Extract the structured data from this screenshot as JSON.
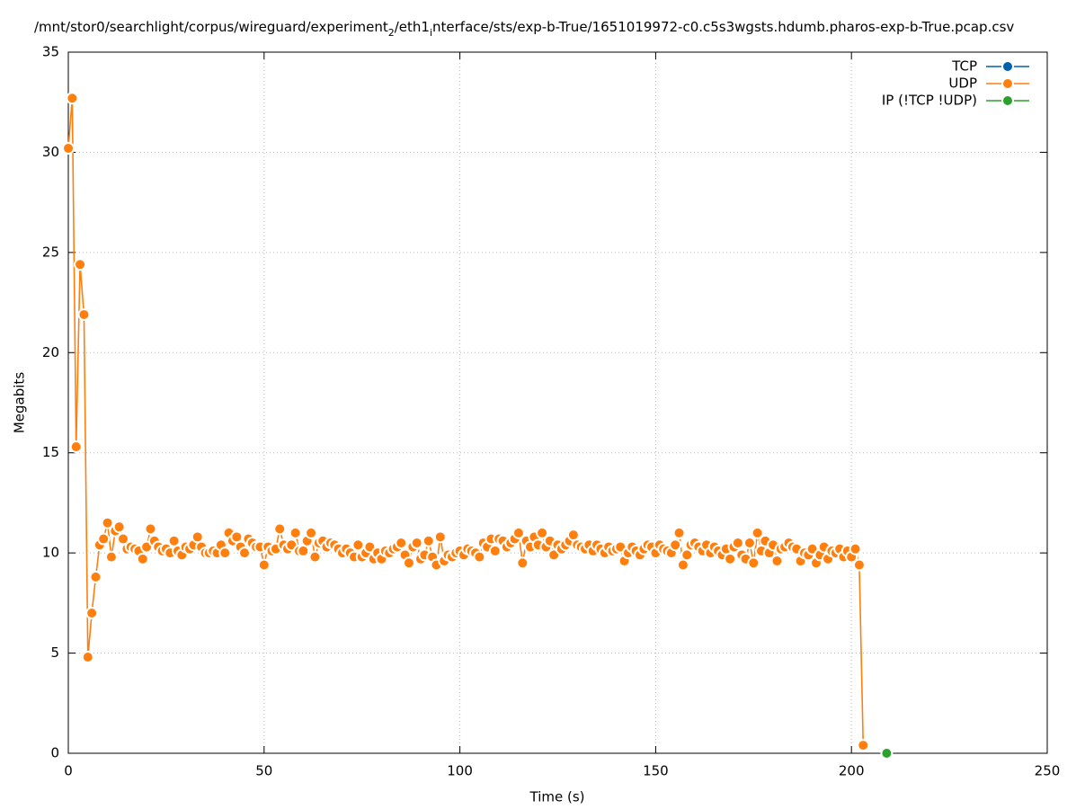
{
  "chart_data": {
    "type": "line",
    "title": [
      "/mnt/stor0/searchlight/corpus/wireguard/experiment",
      "2",
      "/eth1",
      "i",
      "nterface/sts/exp-b-True/1651019972-c0.c5s3wgsts.hdumb.pharos-exp-b-True.pcap.csv"
    ],
    "xlabel": "Time (s)",
    "ylabel": "Megabits",
    "xlim": [
      0,
      250
    ],
    "xticks": [
      0,
      50,
      100,
      150,
      200,
      250
    ],
    "ylim": [
      0,
      35
    ],
    "yticks": [
      0,
      5,
      10,
      15,
      20,
      25,
      30,
      35
    ],
    "grid": true,
    "legend": "top-right",
    "series": [
      {
        "name": "TCP",
        "color": "#0060ad",
        "x": [],
        "values": []
      },
      {
        "name": "UDP",
        "color": "#ff7f0e",
        "x": [
          0,
          1,
          2,
          3,
          4,
          5,
          6,
          7,
          8,
          9,
          10,
          11,
          12,
          13,
          14,
          15,
          16,
          17,
          18,
          19,
          20,
          21,
          22,
          23,
          24,
          25,
          26,
          27,
          28,
          29,
          30,
          31,
          32,
          33,
          34,
          35,
          36,
          37,
          38,
          39,
          40,
          41,
          42,
          43,
          44,
          45,
          46,
          47,
          48,
          49,
          50,
          51,
          52,
          53,
          54,
          55,
          56,
          57,
          58,
          59,
          60,
          61,
          62,
          63,
          64,
          65,
          66,
          67,
          68,
          69,
          70,
          71,
          72,
          73,
          74,
          75,
          76,
          77,
          78,
          79,
          80,
          81,
          82,
          83,
          84,
          85,
          86,
          87,
          88,
          89,
          90,
          91,
          92,
          93,
          94,
          95,
          96,
          97,
          98,
          99,
          100,
          101,
          102,
          103,
          104,
          105,
          106,
          107,
          108,
          109,
          110,
          111,
          112,
          113,
          114,
          115,
          116,
          117,
          118,
          119,
          120,
          121,
          122,
          123,
          124,
          125,
          126,
          127,
          128,
          129,
          130,
          131,
          132,
          133,
          134,
          135,
          136,
          137,
          138,
          139,
          140,
          141,
          142,
          143,
          144,
          145,
          146,
          147,
          148,
          149,
          150,
          151,
          152,
          153,
          154,
          155,
          156,
          157,
          158,
          159,
          160,
          161,
          162,
          163,
          164,
          165,
          166,
          167,
          168,
          169,
          170,
          171,
          172,
          173,
          174,
          175,
          176,
          177,
          178,
          179,
          180,
          181,
          182,
          183,
          184,
          185,
          186,
          187,
          188,
          189,
          190,
          191,
          192,
          193,
          194,
          195,
          196,
          197,
          198,
          199,
          200,
          201,
          202,
          203
        ],
        "values": [
          30.2,
          32.7,
          15.3,
          24.4,
          21.9,
          4.8,
          7.0,
          8.8,
          10.4,
          10.7,
          11.5,
          9.8,
          11.1,
          11.3,
          10.7,
          10.2,
          10.3,
          10.2,
          10.1,
          9.7,
          10.3,
          11.2,
          10.6,
          10.3,
          10.1,
          10.2,
          10.0,
          10.6,
          10.1,
          9.9,
          10.3,
          10.2,
          10.4,
          10.8,
          10.3,
          10.0,
          10.0,
          10.1,
          10.0,
          10.4,
          10.0,
          11.0,
          10.6,
          10.8,
          10.3,
          10.0,
          10.7,
          10.5,
          10.3,
          10.3,
          9.4,
          10.3,
          10.1,
          10.2,
          11.2,
          10.4,
          10.2,
          10.4,
          11.0,
          10.1,
          10.1,
          10.6,
          11.0,
          9.8,
          10.5,
          10.6,
          10.3,
          10.5,
          10.4,
          10.2,
          10.0,
          10.2,
          10.0,
          9.8,
          10.4,
          9.8,
          10.0,
          10.3,
          9.7,
          10.0,
          9.7,
          10.1,
          10.0,
          10.2,
          10.3,
          10.5,
          9.9,
          9.5,
          10.3,
          10.5,
          9.7,
          9.9,
          10.6,
          9.8,
          9.4,
          10.8,
          9.6,
          9.9,
          9.8,
          10.0,
          10.1,
          9.9,
          10.2,
          10.1,
          10.0,
          9.8,
          10.5,
          10.3,
          10.7,
          10.1,
          10.7,
          10.6,
          10.3,
          10.5,
          10.7,
          11.0,
          9.5,
          10.6,
          10.3,
          10.8,
          10.4,
          11.0,
          10.3,
          10.6,
          9.9,
          10.4,
          10.2,
          10.4,
          10.6,
          10.9,
          10.4,
          10.3,
          10.2,
          10.4,
          10.1,
          10.4,
          10.2,
          10.0,
          10.3,
          10.1,
          10.2,
          10.3,
          9.6,
          10.0,
          10.3,
          10.1,
          9.9,
          10.2,
          10.4,
          10.3,
          10.0,
          10.4,
          10.2,
          10.1,
          10.0,
          10.4,
          11.0,
          9.4,
          9.9,
          10.4,
          10.5,
          10.3,
          10.1,
          10.4,
          10.0,
          10.3,
          10.1,
          9.9,
          10.2,
          9.7,
          10.3,
          10.5,
          9.9,
          9.7,
          10.5,
          9.5,
          11.0,
          10.1,
          10.6,
          10.0,
          10.4,
          9.6,
          10.2,
          10.3,
          10.5,
          10.3,
          10.2,
          9.6,
          10.0,
          9.9,
          10.2,
          9.5,
          9.9,
          10.3,
          9.7,
          10.1,
          10.0,
          10.2,
          9.8,
          10.1,
          9.8,
          10.2,
          9.4,
          0.4
        ]
      },
      {
        "name": "IP (!TCP  !UDP)",
        "color": "#2ca02c",
        "x": [
          209
        ],
        "values": [
          0
        ]
      }
    ]
  }
}
